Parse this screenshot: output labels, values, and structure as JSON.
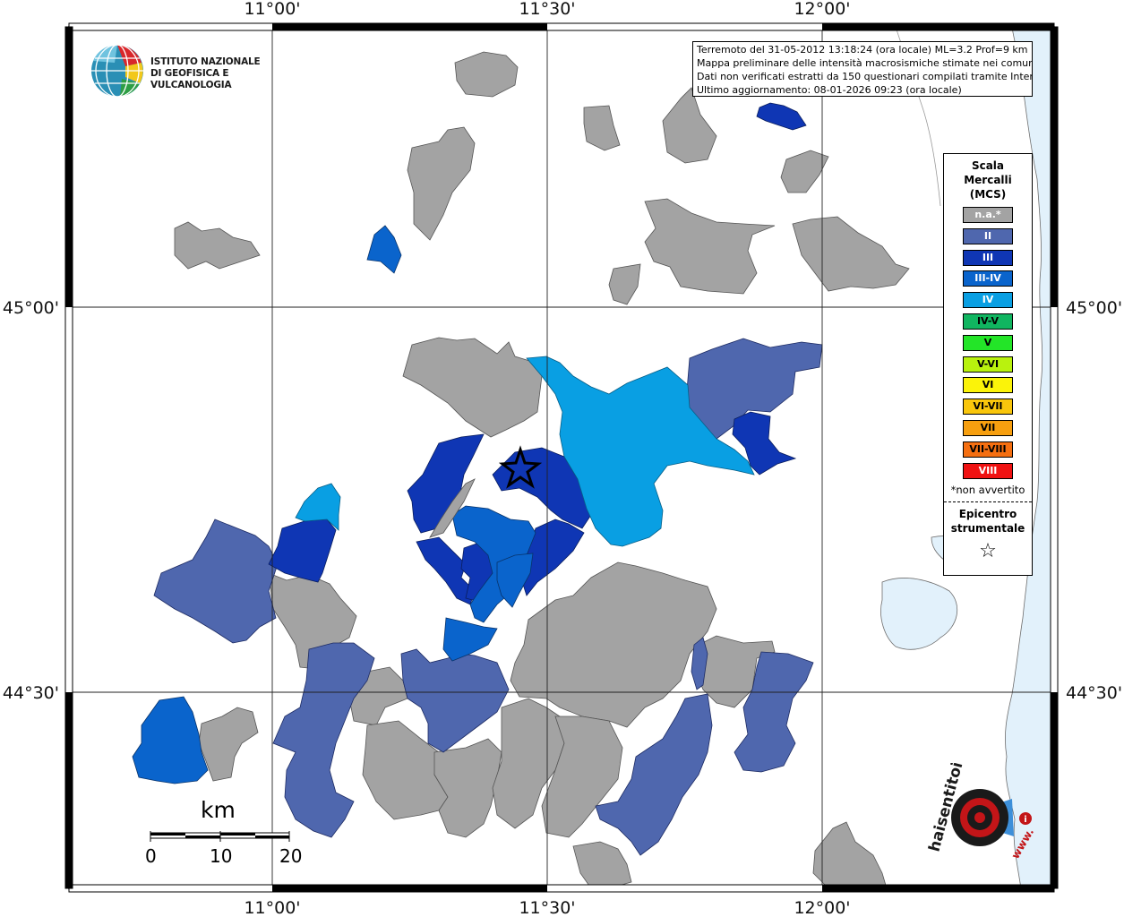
{
  "header": {
    "info_lines": [
      "Terremoto del 31-05-2012 13:18:24 (ora locale) ML=3.2 Prof=9 km",
      "Mappa preliminare delle intensità macrosismiche stimate nei comuni",
      "Dati non verificati estratti da 150 questionari compilati tramite Internet.",
      "Ultimo aggiornamento: 08-01-2026 09:23 (ora locale)"
    ]
  },
  "logo": {
    "institute_line1": "ISTITUTO NAZIONALE",
    "institute_line2": "DI GEOFISICA E VULCANOLOGIA",
    "hst_text": "haisentitoilterremoto.it",
    "hst_www": "www."
  },
  "axes": {
    "longitude_ticks": [
      "11°00'",
      "11°30'",
      "12°00'"
    ],
    "latitude_ticks": [
      "45°00'",
      "44°30'"
    ]
  },
  "legend": {
    "title_lines": [
      "Scala",
      "Mercalli",
      "(MCS)"
    ],
    "items": [
      {
        "label": "n.a.*",
        "color": "#a3a3a3",
        "text_color": "#ffffff"
      },
      {
        "label": "II",
        "color": "#4f67ae",
        "text_color": "#ffffff"
      },
      {
        "label": "III",
        "color": "#0f36b4",
        "text_color": "#ffffff"
      },
      {
        "label": "III-IV",
        "color": "#0a64cc",
        "text_color": "#ffffff"
      },
      {
        "label": "IV",
        "color": "#099fe3",
        "text_color": "#ffffff"
      },
      {
        "label": "IV-V",
        "color": "#10b560",
        "text_color": "#000000"
      },
      {
        "label": "V",
        "color": "#23e528",
        "text_color": "#000000"
      },
      {
        "label": "V-VI",
        "color": "#b9f20e",
        "text_color": "#000000"
      },
      {
        "label": "VI",
        "color": "#fbf309",
        "text_color": "#000000"
      },
      {
        "label": "VI-VII",
        "color": "#f9c60c",
        "text_color": "#000000"
      },
      {
        "label": "VII",
        "color": "#f79f0f",
        "text_color": "#000000"
      },
      {
        "label": "VII-VIII",
        "color": "#f56f11",
        "text_color": "#000000"
      },
      {
        "label": "VIII",
        "color": "#f01212",
        "text_color": "#ffffff"
      }
    ],
    "note": "*non avvertito",
    "epicenter_lines": [
      "Epicentro",
      "strumentale"
    ]
  },
  "scalebar": {
    "unit": "km",
    "labels": [
      "0",
      "10",
      "20"
    ]
  },
  "colors": {
    "sea": "#e2f1fb",
    "na": "#a3a3a3",
    "II": "#4f67ae",
    "III": "#0f36b4",
    "III_IV": "#0a64cc",
    "IV": "#099fe3"
  }
}
